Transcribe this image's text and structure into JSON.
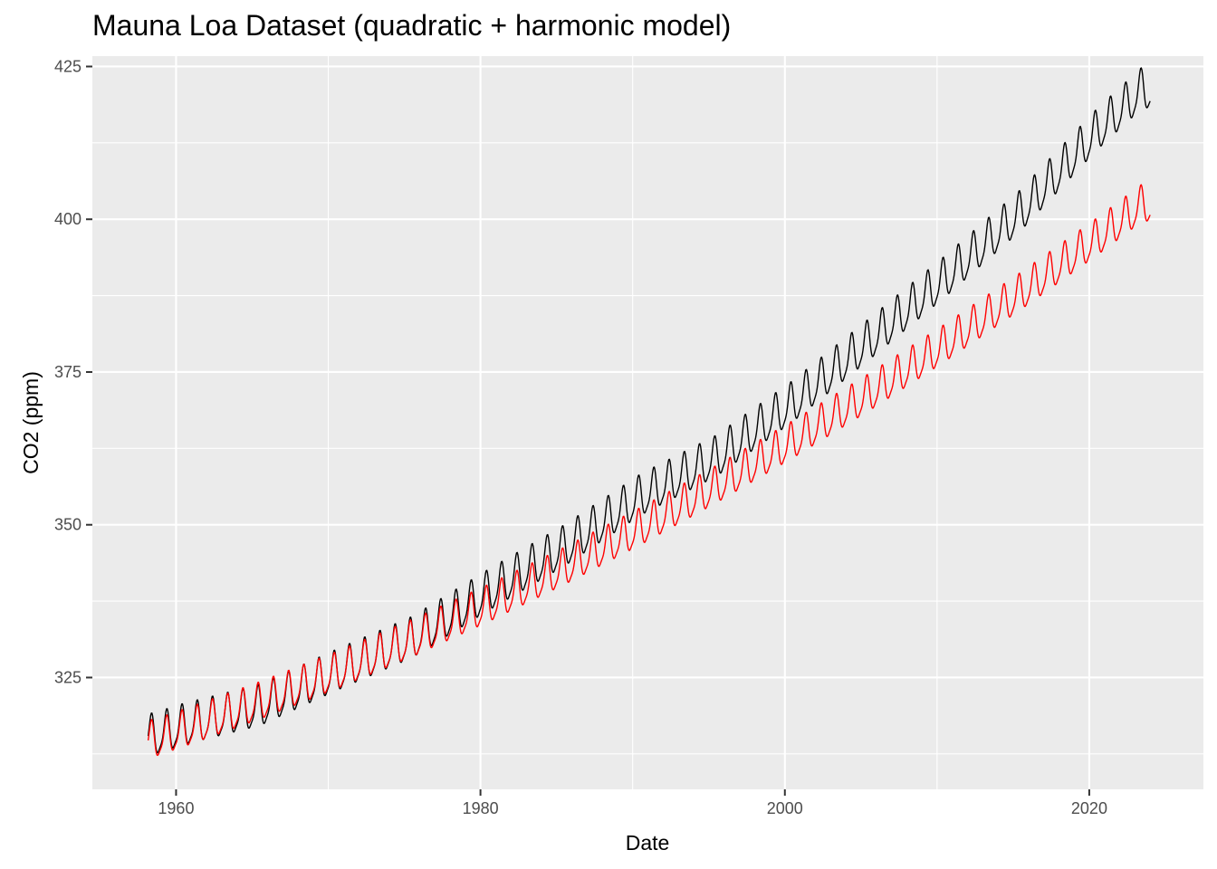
{
  "chart_data": {
    "type": "line",
    "title": "Mauna Loa Dataset (quadratic + harmonic model)",
    "xlabel": "Date",
    "ylabel": "CO2 (ppm)",
    "x_range": [
      1954.5,
      2027.5
    ],
    "ylim": [
      306.7,
      426.7
    ],
    "x_ticks": [
      1960,
      1980,
      2000,
      2020
    ],
    "x_tick_labels": [
      "1960",
      "1980",
      "2000",
      "2020"
    ],
    "y_ticks": [
      325,
      350,
      375,
      400,
      425
    ],
    "y_tick_labels": [
      "325",
      "350",
      "375",
      "400",
      "425"
    ],
    "grid": true,
    "legend": "none",
    "x_start": "1958-03",
    "x_end": "2024-01",
    "series": [
      {
        "role": "observed",
        "color": "#000000",
        "annual_mean": {
          "x": [
            1958.5,
            1960.5,
            1965.5,
            1970.5,
            1975.5,
            1980.5,
            1985.5,
            1990.5,
            1995.5,
            2000.5,
            2005.5,
            2010.5,
            2015.5,
            2020.5,
            2023.5
          ],
          "y": [
            315.3,
            316.9,
            320.0,
            325.7,
            331.1,
            338.8,
            346.1,
            354.4,
            360.8,
            369.7,
            379.8,
            390.1,
            401.0,
            414.2,
            421.1
          ]
        },
        "seasonal_amplitude": 3.2
      },
      {
        "role": "fitted",
        "color": "#ff0000",
        "annual_mean": {
          "x": [
            1958.5,
            1960.5,
            1965.5,
            1970.5,
            1975.5,
            1980.5,
            1985.5,
            1990.5,
            1995.5,
            2000.5,
            2005.5,
            2010.5,
            2015.5,
            2020.5,
            2023.5
          ],
          "y": [
            314.6,
            316.3,
            320.8,
            325.7,
            331.0,
            336.7,
            342.8,
            349.3,
            356.2,
            363.5,
            371.2,
            379.3,
            387.8,
            396.7,
            402.3
          ]
        },
        "seasonal_amplitude": 2.9
      }
    ]
  }
}
